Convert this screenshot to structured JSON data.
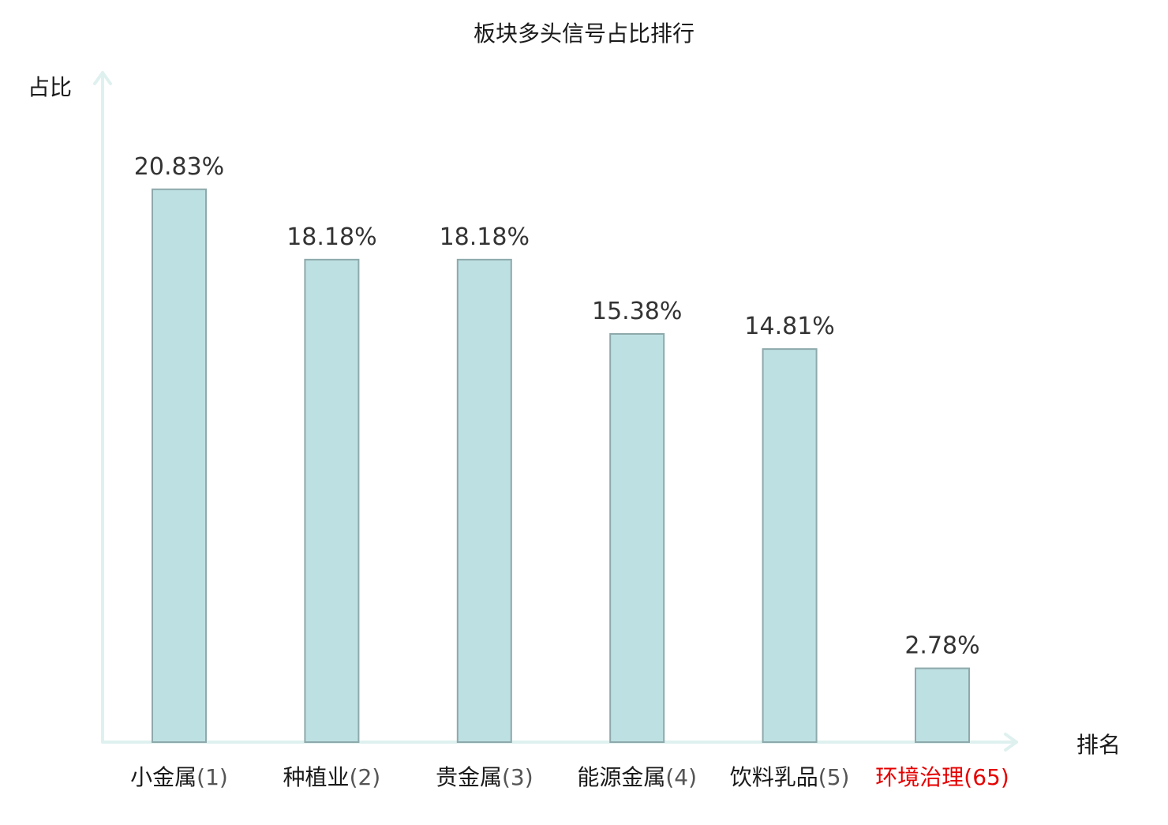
{
  "chart_data": {
    "type": "bar",
    "title": "板块多头信号占比排行",
    "ylabel": "占比",
    "xlabel": "排名",
    "ylim": [
      0,
      23.5
    ],
    "grid": false,
    "legend": "none",
    "categories": [
      {
        "name": "小金属",
        "rank": "(1)",
        "highlight": false
      },
      {
        "name": "种植业",
        "rank": "(2)",
        "highlight": false
      },
      {
        "name": "贵金属",
        "rank": "(3)",
        "highlight": false
      },
      {
        "name": "能源金属",
        "rank": "(4)",
        "highlight": false
      },
      {
        "name": "饮料乳品",
        "rank": "(5)",
        "highlight": false
      },
      {
        "name": "环境治理",
        "rank": "(65)",
        "highlight": true
      }
    ],
    "values": [
      20.83,
      18.18,
      18.18,
      15.38,
      14.81,
      2.78
    ],
    "value_labels": [
      "20.83%",
      "18.18%",
      "18.18%",
      "15.38%",
      "14.81%",
      "2.78%"
    ]
  },
  "colors": {
    "bar_fill": "#bde0e3",
    "bar_stroke": "#8ea9ab",
    "axis": "#dff1ef",
    "text": "#1a1a1a",
    "value_text": "#333333",
    "rank_text": "#555555",
    "highlight": "#e60000"
  }
}
